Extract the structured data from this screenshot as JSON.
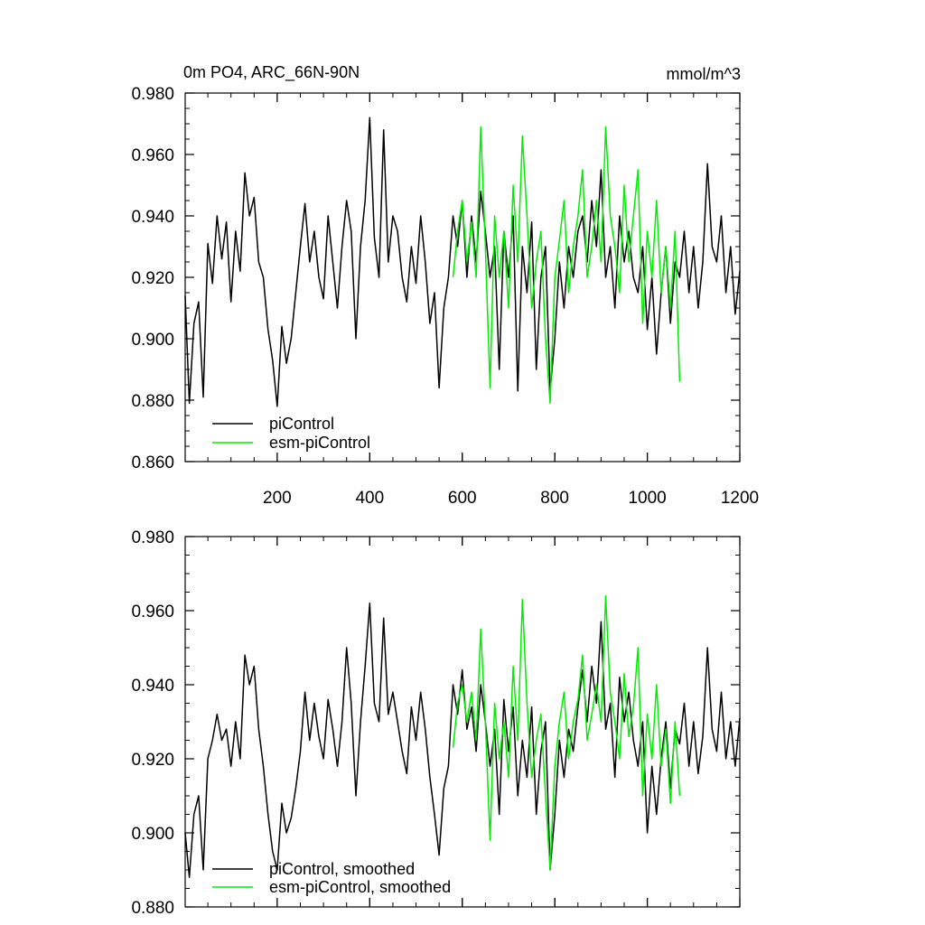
{
  "chart_data": [
    {
      "type": "line",
      "title": "0m PO4, ARC_66N-90N",
      "units": "mmol/m^3",
      "xlim": [
        1,
        1200
      ],
      "ylim": [
        0.86,
        0.98
      ],
      "yticks": [
        0.86,
        0.88,
        0.9,
        0.92,
        0.94,
        0.96,
        0.98
      ],
      "ytick_labels": [
        "0.860",
        "0.880",
        "0.900",
        "0.920",
        "0.940",
        "0.960",
        "0.980"
      ],
      "xticks": [
        200,
        400,
        600,
        800,
        1000,
        1200
      ],
      "xtick_labels": [
        "200",
        "400",
        "600",
        "800",
        "1000",
        "1200"
      ],
      "grid": false,
      "legend_position": "bottom-left",
      "series": [
        {
          "name": "piControl",
          "color": "#000000",
          "x": [
            1,
            10,
            20,
            30,
            40,
            50,
            60,
            70,
            80,
            90,
            100,
            110,
            120,
            130,
            140,
            150,
            160,
            170,
            180,
            190,
            200,
            210,
            220,
            230,
            240,
            250,
            260,
            270,
            280,
            290,
            300,
            310,
            320,
            330,
            340,
            350,
            360,
            370,
            380,
            390,
            400,
            410,
            420,
            430,
            440,
            450,
            460,
            470,
            480,
            490,
            500,
            510,
            520,
            530,
            540,
            550,
            560,
            570,
            580,
            590,
            600,
            610,
            620,
            630,
            640,
            650,
            660,
            670,
            680,
            690,
            700,
            710,
            720,
            730,
            740,
            750,
            760,
            770,
            780,
            790,
            800,
            810,
            820,
            830,
            840,
            850,
            860,
            870,
            880,
            890,
            900,
            910,
            920,
            930,
            940,
            950,
            960,
            970,
            980,
            990,
            1000,
            1010,
            1020,
            1030,
            1040,
            1050,
            1060,
            1070,
            1080,
            1090,
            1100,
            1110,
            1120,
            1130,
            1140,
            1150,
            1160,
            1170,
            1180,
            1190,
            1200
          ],
          "y": [
            0.914,
            0.879,
            0.905,
            0.912,
            0.881,
            0.931,
            0.918,
            0.94,
            0.926,
            0.938,
            0.912,
            0.935,
            0.922,
            0.954,
            0.94,
            0.946,
            0.925,
            0.92,
            0.903,
            0.893,
            0.878,
            0.904,
            0.892,
            0.9,
            0.915,
            0.93,
            0.944,
            0.925,
            0.935,
            0.92,
            0.913,
            0.94,
            0.925,
            0.91,
            0.93,
            0.945,
            0.935,
            0.9,
            0.93,
            0.945,
            0.972,
            0.933,
            0.92,
            0.968,
            0.925,
            0.94,
            0.935,
            0.92,
            0.912,
            0.93,
            0.918,
            0.94,
            0.925,
            0.905,
            0.915,
            0.884,
            0.91,
            0.92,
            0.94,
            0.93,
            0.945,
            0.92,
            0.94,
            0.925,
            0.948,
            0.935,
            0.92,
            0.93,
            0.89,
            0.935,
            0.92,
            0.94,
            0.883,
            0.93,
            0.915,
            0.938,
            0.89,
            0.92,
            0.93,
            0.883,
            0.9,
            0.925,
            0.91,
            0.93,
            0.92,
            0.935,
            0.94,
            0.925,
            0.945,
            0.93,
            0.955,
            0.92,
            0.93,
            0.91,
            0.94,
            0.925,
            0.935,
            0.92,
            0.915,
            0.93,
            0.903,
            0.92,
            0.895,
            0.915,
            0.93,
            0.905,
            0.925,
            0.92,
            0.935,
            0.915,
            0.93,
            0.91,
            0.925,
            0.957,
            0.93,
            0.925,
            0.94,
            0.915,
            0.93,
            0.908,
            0.922
          ]
        },
        {
          "name": "esm-piControl",
          "color": "#00ee00",
          "x": [
            580,
            590,
            600,
            610,
            620,
            630,
            640,
            650,
            660,
            670,
            680,
            690,
            700,
            710,
            720,
            730,
            740,
            750,
            760,
            770,
            780,
            790,
            800,
            810,
            820,
            830,
            840,
            850,
            860,
            870,
            880,
            890,
            900,
            910,
            920,
            930,
            940,
            950,
            960,
            970,
            980,
            990,
            1000,
            1010,
            1020,
            1030,
            1040,
            1050,
            1060,
            1070
          ],
          "y": [
            0.92,
            0.935,
            0.945,
            0.925,
            0.938,
            0.92,
            0.969,
            0.93,
            0.884,
            0.94,
            0.92,
            0.935,
            0.91,
            0.95,
            0.925,
            0.966,
            0.94,
            0.91,
            0.925,
            0.935,
            0.9,
            0.879,
            0.92,
            0.932,
            0.945,
            0.915,
            0.93,
            0.94,
            0.955,
            0.92,
            0.93,
            0.945,
            0.925,
            0.969,
            0.94,
            0.93,
            0.915,
            0.95,
            0.925,
            0.94,
            0.955,
            0.905,
            0.935,
            0.92,
            0.945,
            0.915,
            0.93,
            0.91,
            0.935,
            0.886
          ]
        }
      ]
    },
    {
      "type": "line",
      "xlim": [
        1,
        1200
      ],
      "ylim": [
        0.88,
        0.98
      ],
      "yticks": [
        0.88,
        0.9,
        0.92,
        0.94,
        0.96,
        0.98
      ],
      "ytick_labels": [
        "0.880",
        "0.900",
        "0.920",
        "0.940",
        "0.960",
        "0.980"
      ],
      "xticks": [
        200,
        400,
        600,
        800,
        1000,
        1200
      ],
      "grid": false,
      "legend_position": "bottom-left",
      "series": [
        {
          "name": "piControl, smoothed",
          "color": "#000000",
          "x": [
            1,
            10,
            20,
            30,
            40,
            50,
            60,
            70,
            80,
            90,
            100,
            110,
            120,
            130,
            140,
            150,
            160,
            170,
            180,
            190,
            200,
            210,
            220,
            230,
            240,
            250,
            260,
            270,
            280,
            290,
            300,
            310,
            320,
            330,
            340,
            350,
            360,
            370,
            380,
            390,
            400,
            410,
            420,
            430,
            440,
            450,
            460,
            470,
            480,
            490,
            500,
            510,
            520,
            530,
            540,
            550,
            560,
            570,
            580,
            590,
            600,
            610,
            620,
            630,
            640,
            650,
            660,
            670,
            680,
            690,
            700,
            710,
            720,
            730,
            740,
            750,
            760,
            770,
            780,
            790,
            800,
            810,
            820,
            830,
            840,
            850,
            860,
            870,
            880,
            890,
            900,
            910,
            920,
            930,
            940,
            950,
            960,
            970,
            980,
            990,
            1000,
            1010,
            1020,
            1030,
            1040,
            1050,
            1060,
            1070,
            1080,
            1090,
            1100,
            1110,
            1120,
            1130,
            1140,
            1150,
            1160,
            1170,
            1180,
            1190,
            1200
          ],
          "y": [
            0.9,
            0.888,
            0.905,
            0.91,
            0.89,
            0.92,
            0.925,
            0.932,
            0.925,
            0.928,
            0.918,
            0.93,
            0.92,
            0.948,
            0.94,
            0.945,
            0.928,
            0.918,
            0.905,
            0.895,
            0.89,
            0.908,
            0.9,
            0.904,
            0.912,
            0.922,
            0.938,
            0.925,
            0.935,
            0.926,
            0.92,
            0.936,
            0.928,
            0.918,
            0.93,
            0.95,
            0.935,
            0.91,
            0.93,
            0.945,
            0.962,
            0.935,
            0.93,
            0.958,
            0.932,
            0.938,
            0.93,
            0.922,
            0.916,
            0.934,
            0.925,
            0.938,
            0.928,
            0.915,
            0.905,
            0.894,
            0.912,
            0.918,
            0.94,
            0.932,
            0.944,
            0.928,
            0.934,
            0.922,
            0.94,
            0.93,
            0.918,
            0.928,
            0.905,
            0.936,
            0.922,
            0.934,
            0.91,
            0.925,
            0.915,
            0.934,
            0.905,
            0.922,
            0.93,
            0.89,
            0.905,
            0.925,
            0.915,
            0.928,
            0.922,
            0.934,
            0.944,
            0.93,
            0.945,
            0.935,
            0.957,
            0.928,
            0.935,
            0.915,
            0.942,
            0.93,
            0.938,
            0.925,
            0.918,
            0.93,
            0.9,
            0.918,
            0.905,
            0.92,
            0.93,
            0.912,
            0.928,
            0.924,
            0.935,
            0.918,
            0.93,
            0.916,
            0.926,
            0.95,
            0.928,
            0.922,
            0.938,
            0.92,
            0.93,
            0.918,
            0.931
          ]
        },
        {
          "name": "esm-piControl, smoothed",
          "color": "#00ee00",
          "x": [
            580,
            590,
            600,
            610,
            620,
            630,
            640,
            650,
            660,
            670,
            680,
            690,
            700,
            710,
            720,
            730,
            740,
            750,
            760,
            770,
            780,
            790,
            800,
            810,
            820,
            830,
            840,
            850,
            860,
            870,
            880,
            890,
            900,
            910,
            920,
            930,
            940,
            950,
            960,
            970,
            980,
            990,
            1000,
            1010,
            1020,
            1030,
            1040,
            1050,
            1060,
            1070
          ],
          "y": [
            0.923,
            0.935,
            0.94,
            0.93,
            0.938,
            0.925,
            0.955,
            0.93,
            0.898,
            0.935,
            0.92,
            0.93,
            0.915,
            0.945,
            0.925,
            0.963,
            0.935,
            0.915,
            0.925,
            0.932,
            0.91,
            0.89,
            0.918,
            0.93,
            0.938,
            0.92,
            0.93,
            0.936,
            0.948,
            0.925,
            0.932,
            0.94,
            0.93,
            0.964,
            0.938,
            0.93,
            0.92,
            0.943,
            0.926,
            0.934,
            0.95,
            0.91,
            0.932,
            0.92,
            0.94,
            0.918,
            0.928,
            0.908,
            0.93,
            0.91
          ]
        }
      ]
    }
  ]
}
